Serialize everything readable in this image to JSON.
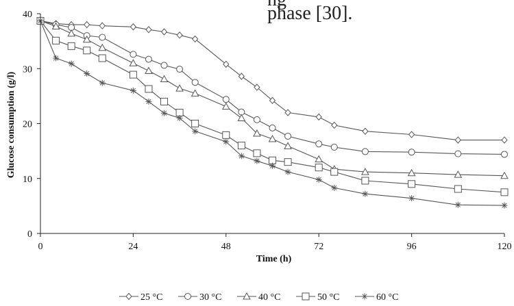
{
  "page_text": {
    "line1": "ng",
    "line2": "phase [30]."
  },
  "chart_data": {
    "type": "line",
    "title": "",
    "xlabel": "Time (h)",
    "ylabel": "Glucose consumption  (g/l)",
    "xlim": [
      0,
      120
    ],
    "ylim": [
      0,
      40
    ],
    "xticks": [
      0,
      24,
      48,
      72,
      96,
      120
    ],
    "yticks": [
      0,
      10,
      20,
      30,
      40
    ],
    "grid": false,
    "legend_position": "bottom",
    "series": [
      {
        "name": "25 °C",
        "marker": "diamond",
        "x": [
          0,
          4,
          8,
          12,
          16,
          24,
          28,
          32,
          36,
          40,
          48,
          52,
          56,
          60,
          64,
          72,
          76,
          84,
          96,
          108,
          120
        ],
        "y": [
          38.7,
          38.2,
          38.0,
          38.0,
          37.8,
          37.6,
          37.1,
          36.7,
          36.1,
          35.4,
          30.8,
          28.6,
          26.6,
          24.2,
          22.0,
          21.2,
          19.7,
          18.6,
          18.0,
          17.0,
          17.0
        ]
      },
      {
        "name": "30 °C",
        "marker": "circle",
        "x": [
          0,
          4,
          8,
          12,
          16,
          24,
          28,
          32,
          36,
          40,
          48,
          52,
          56,
          60,
          64,
          72,
          76,
          84,
          96,
          108,
          120
        ],
        "y": [
          38.7,
          38.0,
          37.5,
          36.0,
          35.7,
          32.6,
          31.7,
          30.6,
          29.9,
          27.5,
          24.4,
          22.1,
          20.7,
          19.2,
          17.7,
          16.3,
          15.7,
          14.9,
          14.8,
          14.5,
          14.4
        ]
      },
      {
        "name": "40 °C",
        "marker": "triangle",
        "x": [
          0,
          4,
          8,
          12,
          16,
          24,
          28,
          32,
          36,
          40,
          48,
          52,
          56,
          60,
          64,
          72,
          76,
          84,
          96,
          108,
          120
        ],
        "y": [
          38.7,
          37.7,
          36.4,
          35.3,
          33.8,
          31.0,
          29.6,
          28.1,
          26.4,
          25.5,
          23.1,
          21.0,
          18.2,
          17.2,
          15.9,
          13.5,
          11.7,
          11.2,
          11.0,
          10.7,
          10.5
        ]
      },
      {
        "name": "50 °C",
        "marker": "square",
        "x": [
          0,
          4,
          8,
          12,
          16,
          24,
          28,
          32,
          36,
          40,
          48,
          52,
          56,
          60,
          64,
          72,
          76,
          84,
          96,
          108,
          120
        ],
        "y": [
          38.7,
          35.1,
          34.1,
          33.3,
          31.9,
          28.9,
          26.3,
          24.0,
          22.0,
          20.0,
          17.9,
          16.0,
          14.6,
          13.3,
          13.0,
          12.0,
          11.2,
          9.6,
          9.0,
          8.1,
          7.5
        ]
      },
      {
        "name": "60 °C",
        "marker": "star",
        "x": [
          0,
          4,
          8,
          12,
          16,
          24,
          28,
          32,
          36,
          40,
          48,
          52,
          56,
          60,
          64,
          72,
          76,
          84,
          96,
          108,
          120
        ],
        "y": [
          38.7,
          31.9,
          30.9,
          29.1,
          27.4,
          26.0,
          24.0,
          21.9,
          21.0,
          18.6,
          16.7,
          14.1,
          13.2,
          12.3,
          11.2,
          9.8,
          8.3,
          7.2,
          6.4,
          5.2,
          5.1
        ]
      }
    ]
  }
}
